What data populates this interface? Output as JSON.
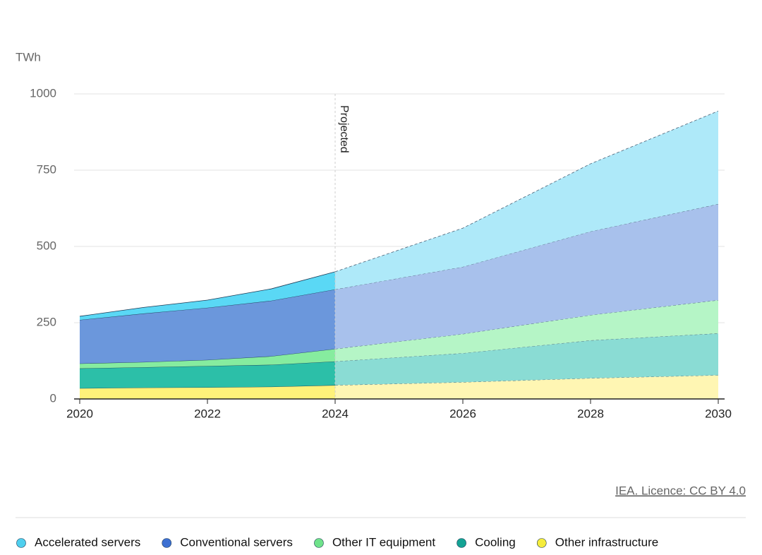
{
  "chart_data": {
    "type": "stacked-area",
    "y_label": "TWh",
    "x": [
      2020,
      2021,
      2022,
      2023,
      2024,
      2026,
      2028,
      2030
    ],
    "xlim": [
      2020,
      2030
    ],
    "xticks": [
      2020,
      2022,
      2024,
      2026,
      2028,
      2030
    ],
    "ylim": [
      0,
      1000
    ],
    "yticks": [
      0,
      250,
      500,
      750,
      1000
    ],
    "grid": true,
    "legend": "bottom",
    "annotation": {
      "text": "Projected",
      "x": 2024
    },
    "source": "IEA. Licence: CC BY 4.0",
    "series": [
      {
        "name": "Other infrastructure",
        "color": "#f5ec3c",
        "fill": "#fff27a",
        "projected_fill": "#fff6b3",
        "values": [
          35,
          37,
          38,
          40,
          45,
          55,
          68,
          78
        ]
      },
      {
        "name": "Cooling",
        "color": "#14a394",
        "fill": "#2cbfa8",
        "projected_fill": "#8adcd4",
        "values": [
          65,
          67,
          70,
          72,
          78,
          95,
          124,
          137
        ]
      },
      {
        "name": "Other IT equipment",
        "color": "#6fe28a",
        "fill": "#86ec9f",
        "projected_fill": "#b5f5c6",
        "values": [
          16,
          17,
          20,
          28,
          41,
          63,
          83,
          109
        ]
      },
      {
        "name": "Conventional servers",
        "color": "#3d70d2",
        "fill": "#6b97dc",
        "projected_fill": "#a8c1ec",
        "values": [
          143,
          159,
          171,
          182,
          195,
          220,
          274,
          315
        ]
      },
      {
        "name": "Accelerated servers",
        "color": "#4fcfee",
        "fill": "#5ad8f5",
        "projected_fill": "#aee9f9",
        "values": [
          12,
          20,
          25,
          39,
          58,
          127,
          222,
          305
        ]
      }
    ]
  }
}
